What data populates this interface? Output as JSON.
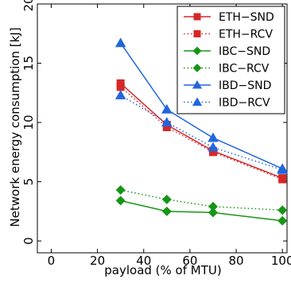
{
  "chart_data": {
    "type": "line",
    "xlabel": "payload (% of MTU)",
    "ylabel": "Network energy consumption [kJ]",
    "xlim": [
      -6,
      102
    ],
    "ylim": [
      -1,
      20
    ],
    "xticks": [
      0,
      20,
      40,
      60,
      80,
      100
    ],
    "yticks": [
      0,
      5,
      10,
      15,
      20
    ],
    "grid": false,
    "legend_position": "top-right",
    "x": [
      30,
      50,
      70,
      100
    ],
    "series": [
      {
        "name": "ETH−SND",
        "values": [
          13.3,
          9.8,
          7.6,
          5.3
        ],
        "color": "#d62728",
        "marker": "square",
        "line": "solid"
      },
      {
        "name": "ETH−RCV",
        "values": [
          13.0,
          9.6,
          7.5,
          5.2
        ],
        "color": "#d62728",
        "marker": "square",
        "line": "dotted"
      },
      {
        "name": "IBC−SND",
        "values": [
          3.4,
          2.5,
          2.4,
          1.7
        ],
        "color": "#159615",
        "marker": "diamond",
        "line": "solid"
      },
      {
        "name": "IBC−RCV",
        "values": [
          4.3,
          3.5,
          2.9,
          2.6
        ],
        "color": "#159615",
        "marker": "diamond",
        "line": "dotted"
      },
      {
        "name": "IBD−SND",
        "values": [
          16.7,
          11.1,
          8.7,
          6.1
        ],
        "color": "#2266dd",
        "marker": "triangle",
        "line": "solid"
      },
      {
        "name": "IBD−RCV",
        "values": [
          12.3,
          10.0,
          7.9,
          6.0
        ],
        "color": "#2266dd",
        "marker": "triangle",
        "line": "dotted"
      }
    ]
  }
}
